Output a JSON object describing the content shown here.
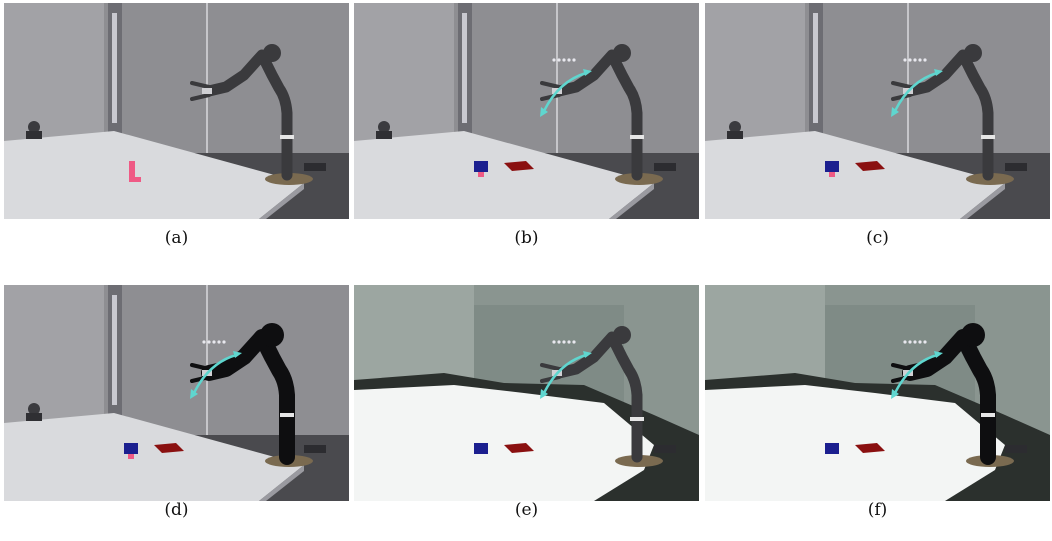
{
  "panels": [
    {
      "id": "a",
      "caption": "(a)",
      "style": "photo",
      "blocks": false,
      "trajectory": false,
      "mask": false
    },
    {
      "id": "b",
      "caption": "(b)",
      "style": "photo",
      "blocks": true,
      "trajectory": true,
      "mask": false
    },
    {
      "id": "c",
      "caption": "(c)",
      "style": "photo",
      "blocks": true,
      "trajectory": true,
      "mask": false
    },
    {
      "id": "d",
      "caption": "(d)",
      "style": "photo",
      "blocks": true,
      "trajectory": true,
      "mask": true
    },
    {
      "id": "e",
      "caption": "(e)",
      "style": "render",
      "blocks": true,
      "trajectory": true,
      "mask": false
    },
    {
      "id": "f",
      "caption": "(f)",
      "style": "render",
      "blocks": true,
      "trajectory": true,
      "mask": true
    }
  ],
  "colors": {
    "trajectory": "#5fd6cf",
    "block_blue": "#1b1f8f",
    "target_red": "#8a1010",
    "pink_block": "#ef5a85",
    "robot_gray": "#3a3a3d",
    "robot_mask": "#0e0e10"
  }
}
